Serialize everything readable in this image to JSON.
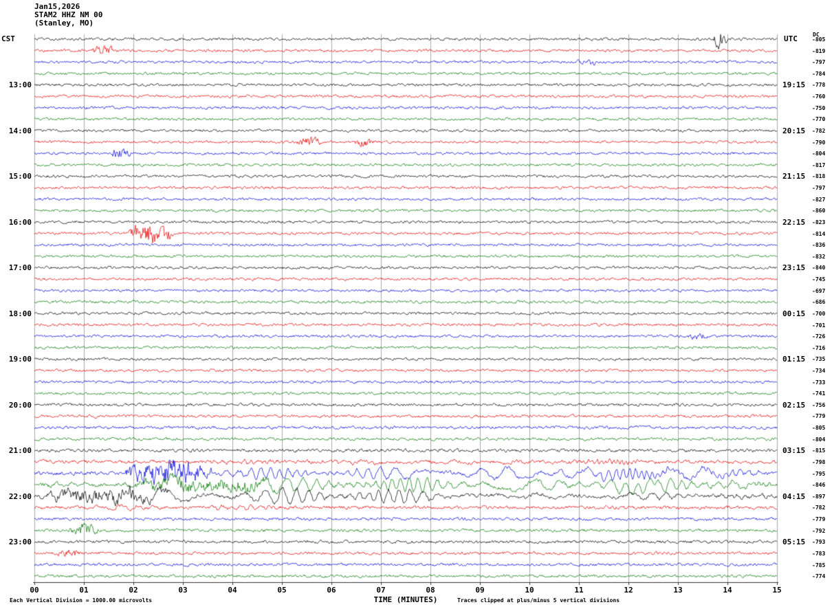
{
  "header": {
    "date": "Jan15,2026",
    "station": "STAM2 HHZ NM 00",
    "location": "(Stanley, MO)"
  },
  "left_axis": {
    "label": "CST",
    "hours": [
      "13:00",
      "14:00",
      "15:00",
      "16:00",
      "17:00",
      "18:00",
      "19:00",
      "20:00",
      "21:00",
      "22:00",
      "23:00"
    ]
  },
  "right_axis": {
    "label": "UTC",
    "hours": [
      "19:15",
      "20:15",
      "21:15",
      "22:15",
      "23:15",
      "00:15",
      "01:15",
      "02:15",
      "03:15",
      "04:15",
      "05:15"
    ]
  },
  "dc_label": "DC",
  "x_axis": {
    "label": "TIME (MINUTES)",
    "ticks": [
      "00",
      "01",
      "02",
      "03",
      "04",
      "05",
      "06",
      "07",
      "08",
      "09",
      "10",
      "11",
      "12",
      "13",
      "14",
      "15"
    ]
  },
  "footer": {
    "left": "Each Vertical Division = 1000.00 microvolts",
    "right": "Traces clipped at plus/minus 5 vertical divisions"
  },
  "colors": {
    "black": "#000000",
    "red": "#e60000",
    "blue": "#0000dd",
    "green": "#007700",
    "grid": "#a8a8a8",
    "axis": "#333333"
  },
  "chart_data": {
    "type": "line",
    "subtype": "helicorder_seismogram",
    "title": "STAM2 HHZ NM 00 (Stanley, MO) Jan15,2026",
    "xlabel": "TIME (MINUTES)",
    "x_range_minutes": [
      0,
      15
    ],
    "minutes_per_line": 15,
    "lines_per_hour": 4,
    "trace_color_cycle": [
      "black",
      "red",
      "blue",
      "green"
    ],
    "rows": [
      {
        "color": "black",
        "dc": -805,
        "base": 1.8,
        "events": [
          {
            "s": 13.72,
            "e": 13.98,
            "amp": 11
          }
        ]
      },
      {
        "color": "red",
        "dc": -819,
        "base": 1.8,
        "events": [
          {
            "s": 1.15,
            "e": 1.65,
            "amp": 5
          }
        ]
      },
      {
        "color": "blue",
        "dc": -797,
        "base": 1.8,
        "events": [
          {
            "s": 10.95,
            "e": 11.45,
            "amp": 3
          }
        ]
      },
      {
        "color": "green",
        "dc": -784,
        "base": 1.8
      },
      {
        "color": "black",
        "dc": -778,
        "base": 1.8
      },
      {
        "color": "red",
        "dc": -760,
        "base": 1.8
      },
      {
        "color": "blue",
        "dc": -750,
        "base": 1.8
      },
      {
        "color": "green",
        "dc": -770,
        "base": 1.8
      },
      {
        "color": "black",
        "dc": -782,
        "base": 1.8
      },
      {
        "color": "red",
        "dc": -790,
        "base": 1.8,
        "events": [
          {
            "s": 5.3,
            "e": 5.8,
            "amp": 5
          },
          {
            "s": 6.45,
            "e": 6.9,
            "amp": 4
          }
        ]
      },
      {
        "color": "blue",
        "dc": -804,
        "base": 1.8,
        "events": [
          {
            "s": 1.55,
            "e": 1.95,
            "amp": 5
          }
        ]
      },
      {
        "color": "green",
        "dc": -817,
        "base": 1.8
      },
      {
        "color": "black",
        "dc": -818,
        "base": 1.8
      },
      {
        "color": "red",
        "dc": -797,
        "base": 1.8
      },
      {
        "color": "blue",
        "dc": -827,
        "base": 1.8
      },
      {
        "color": "green",
        "dc": -860,
        "base": 1.8
      },
      {
        "color": "black",
        "dc": -823,
        "base": 1.8
      },
      {
        "color": "red",
        "dc": -814,
        "base": 1.8,
        "events": [
          {
            "s": 1.9,
            "e": 2.8,
            "amp": 13
          }
        ]
      },
      {
        "color": "blue",
        "dc": -836,
        "base": 1.8
      },
      {
        "color": "green",
        "dc": -832,
        "base": 1.8
      },
      {
        "color": "black",
        "dc": -840,
        "base": 1.8
      },
      {
        "color": "red",
        "dc": -745,
        "base": 1.8
      },
      {
        "color": "blue",
        "dc": -697,
        "base": 1.8
      },
      {
        "color": "green",
        "dc": -686,
        "base": 1.8
      },
      {
        "color": "black",
        "dc": -700,
        "base": 1.8
      },
      {
        "color": "red",
        "dc": -701,
        "base": 1.8
      },
      {
        "color": "blue",
        "dc": -726,
        "base": 1.8,
        "events": [
          {
            "s": 13.2,
            "e": 13.6,
            "amp": 3
          }
        ]
      },
      {
        "color": "green",
        "dc": -716,
        "base": 1.8
      },
      {
        "color": "black",
        "dc": -735,
        "base": 1.8
      },
      {
        "color": "red",
        "dc": -734,
        "base": 1.8
      },
      {
        "color": "blue",
        "dc": -733,
        "base": 1.8
      },
      {
        "color": "green",
        "dc": -741,
        "base": 1.8
      },
      {
        "color": "black",
        "dc": -756,
        "base": 1.9
      },
      {
        "color": "red",
        "dc": -779,
        "base": 1.9
      },
      {
        "color": "blue",
        "dc": -805,
        "base": 1.9,
        "events": [
          {
            "s": 10.8,
            "e": 13.0,
            "amp": 4,
            "lf": 1,
            "f": 1.5
          }
        ]
      },
      {
        "color": "green",
        "dc": -804,
        "base": 1.9
      },
      {
        "color": "black",
        "dc": -815,
        "base": 2.1
      },
      {
        "color": "red",
        "dc": -798,
        "base": 2.3,
        "events": [
          {
            "s": 1.9,
            "e": 15,
            "amp": 3,
            "lf": 1,
            "f": 4
          }
        ]
      },
      {
        "color": "blue",
        "dc": -795,
        "base": 2.4,
        "events": [
          {
            "s": 1.8,
            "e": 3.6,
            "amp": 15
          },
          {
            "s": 2.0,
            "e": 15,
            "amp": 9,
            "lf": 1,
            "f": 3.0
          },
          {
            "s": 9.8,
            "e": 15,
            "amp": 9,
            "lf": 1,
            "f": 1.1
          }
        ]
      },
      {
        "color": "green",
        "dc": -846,
        "base": 2.4,
        "events": [
          {
            "s": 0,
            "e": 15,
            "amp": 10,
            "lf": 1,
            "f": 2.6
          },
          {
            "s": 2.0,
            "e": 5.0,
            "amp": 7
          },
          {
            "s": 10.0,
            "e": 14.8,
            "amp": 8,
            "lf": 1,
            "f": 1.4
          }
        ]
      },
      {
        "color": "black",
        "dc": -897,
        "base": 2.4,
        "events": [
          {
            "s": 0,
            "e": 9.5,
            "amp": 12,
            "lf": 1,
            "f": 2.4
          },
          {
            "s": 0.2,
            "e": 2.8,
            "amp": 7
          },
          {
            "s": 9.0,
            "e": 15,
            "amp": 5,
            "lf": 1,
            "f": 1.8
          }
        ]
      },
      {
        "color": "red",
        "dc": -782,
        "base": 2.2,
        "events": [
          {
            "s": 0,
            "e": 6,
            "amp": 3,
            "lf": 1,
            "f": 3
          }
        ]
      },
      {
        "color": "blue",
        "dc": -779,
        "base": 2.0
      },
      {
        "color": "green",
        "dc": -792,
        "base": 1.9,
        "events": [
          {
            "s": 0.7,
            "e": 1.3,
            "amp": 7
          }
        ]
      },
      {
        "color": "black",
        "dc": -793,
        "base": 2.0
      },
      {
        "color": "red",
        "dc": -783,
        "base": 1.9,
        "events": [
          {
            "s": 0.45,
            "e": 0.95,
            "amp": 4
          }
        ]
      },
      {
        "color": "blue",
        "dc": -785,
        "base": 1.9
      },
      {
        "color": "green",
        "dc": -774,
        "base": 1.9
      }
    ]
  }
}
